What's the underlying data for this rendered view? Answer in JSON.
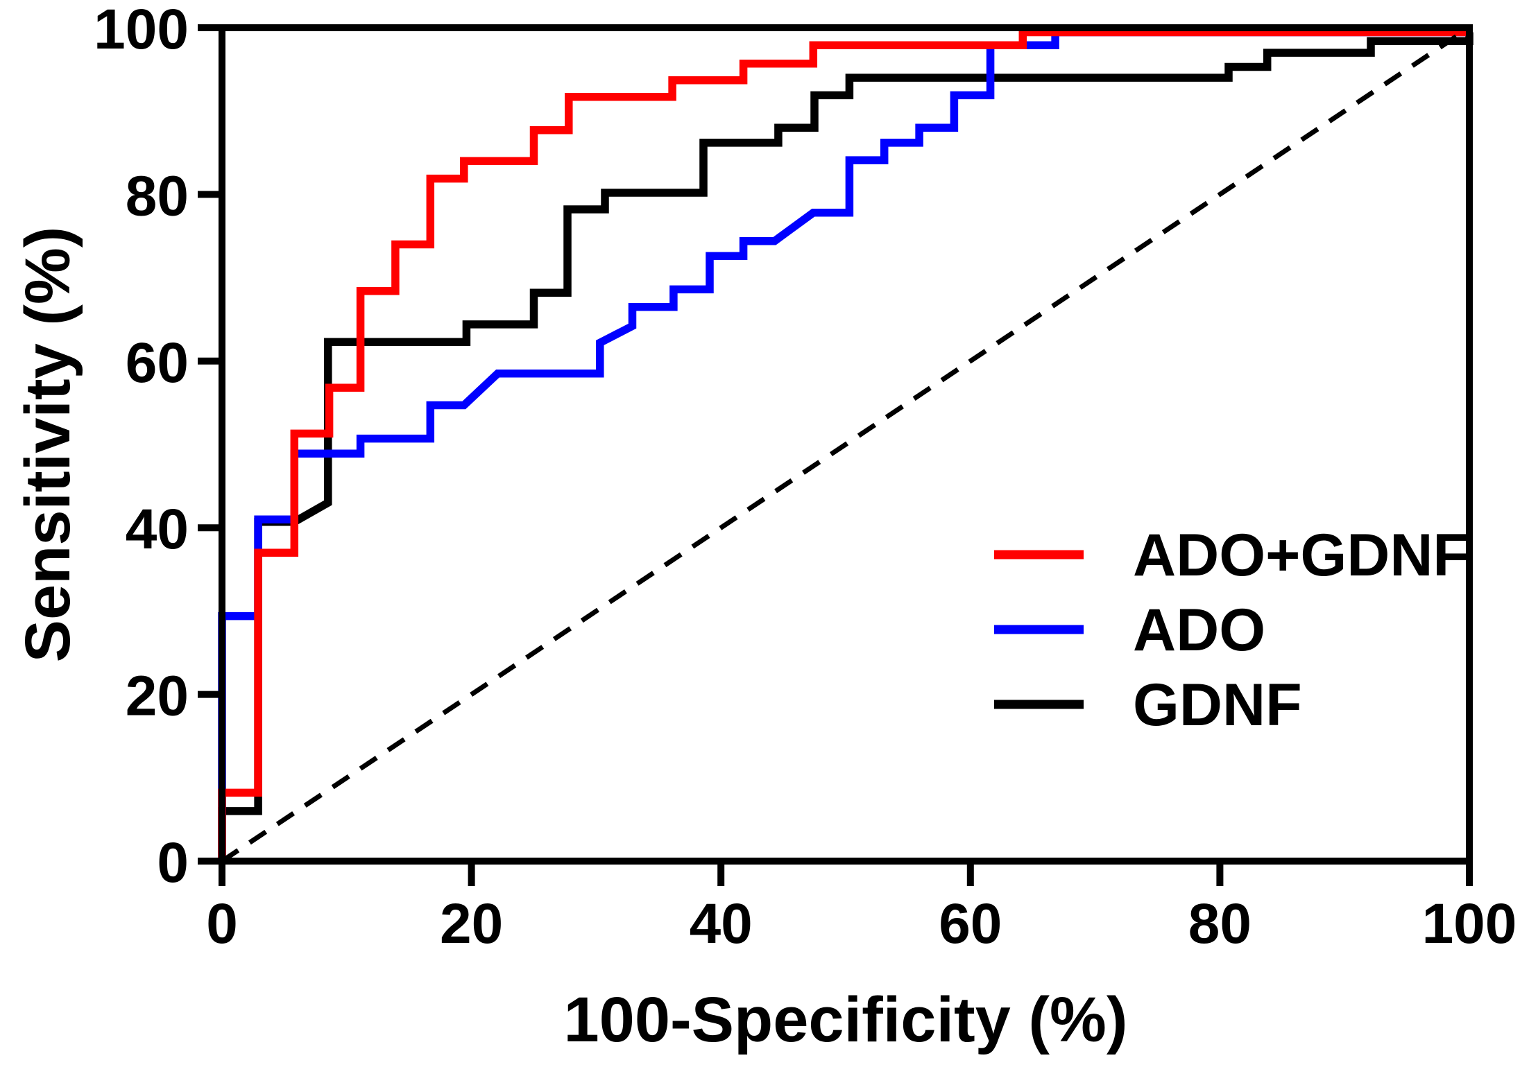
{
  "chart_data": {
    "type": "line",
    "subtype": "roc-step-curves",
    "title": "",
    "xlabel": "100-Specificity (%)",
    "ylabel": "Sensitivity (%)",
    "xlim": [
      0,
      100
    ],
    "ylim": [
      0,
      100
    ],
    "x_ticks": [
      "0",
      "20",
      "40",
      "60",
      "80",
      "100"
    ],
    "y_ticks": [
      "0",
      "20",
      "40",
      "60",
      "80",
      "100"
    ],
    "x_tick_values": [
      0,
      20,
      40,
      60,
      80,
      100
    ],
    "y_tick_values": [
      0,
      20,
      40,
      60,
      80,
      100
    ],
    "grid": false,
    "legend_position": "lower right",
    "frame_color": "#000000",
    "background_color": "#ffffff",
    "reference_line": {
      "name": "chance-diagonal",
      "style": "dashed",
      "color": "#000000",
      "from": [
        0,
        0
      ],
      "to": [
        100,
        100
      ]
    },
    "series": [
      {
        "name": "ADO+GDNF",
        "color": "#ff0000",
        "points": [
          [
            0,
            0
          ],
          [
            0,
            8.2
          ],
          [
            2.9,
            8.2
          ],
          [
            2.9,
            37
          ],
          [
            5.8,
            37
          ],
          [
            5.8,
            51.3
          ],
          [
            8.6,
            51.3
          ],
          [
            8.6,
            56.8
          ],
          [
            11.1,
            56.8
          ],
          [
            11.1,
            68.4
          ],
          [
            13.9,
            68.4
          ],
          [
            13.9,
            74
          ],
          [
            16.7,
            74
          ],
          [
            16.7,
            81.9
          ],
          [
            19.4,
            81.9
          ],
          [
            19.4,
            84
          ],
          [
            25,
            84
          ],
          [
            25,
            87.7
          ],
          [
            27.8,
            87.7
          ],
          [
            27.8,
            91.7
          ],
          [
            36.1,
            91.7
          ],
          [
            36.1,
            93.7
          ],
          [
            41.8,
            93.7
          ],
          [
            41.8,
            95.7
          ],
          [
            47.4,
            95.7
          ],
          [
            47.4,
            97.9
          ],
          [
            64.2,
            97.9
          ],
          [
            64.2,
            100
          ],
          [
            100,
            100
          ]
        ]
      },
      {
        "name": "ADO",
        "color": "#0000ff",
        "points": [
          [
            0,
            0
          ],
          [
            0,
            29.4
          ],
          [
            2.9,
            29.4
          ],
          [
            2.9,
            41
          ],
          [
            5.8,
            41
          ],
          [
            5.8,
            48.9
          ],
          [
            11.1,
            48.9
          ],
          [
            11.1,
            50.7
          ],
          [
            16.7,
            50.7
          ],
          [
            16.7,
            54.7
          ],
          [
            19.4,
            54.7
          ],
          [
            22.1,
            58.5
          ],
          [
            30.3,
            58.5
          ],
          [
            30.3,
            62.2
          ],
          [
            32.9,
            64.2
          ],
          [
            32.9,
            66.5
          ],
          [
            36.2,
            66.5
          ],
          [
            36.2,
            68.6
          ],
          [
            39.1,
            68.6
          ],
          [
            39.1,
            72.6
          ],
          [
            41.8,
            72.6
          ],
          [
            41.8,
            74.4
          ],
          [
            44.3,
            74.4
          ],
          [
            47.4,
            77.8
          ],
          [
            50.3,
            77.8
          ],
          [
            50.3,
            84.1
          ],
          [
            53.1,
            84.1
          ],
          [
            53.1,
            86.2
          ],
          [
            55.9,
            86.2
          ],
          [
            55.9,
            88
          ],
          [
            58.7,
            88
          ],
          [
            58.7,
            91.9
          ],
          [
            61.6,
            91.9
          ],
          [
            61.6,
            97.9
          ],
          [
            66.8,
            97.9
          ],
          [
            66.8,
            100
          ],
          [
            100,
            100
          ]
        ]
      },
      {
        "name": "GDNF",
        "color": "#000000",
        "points": [
          [
            0,
            0
          ],
          [
            0,
            6
          ],
          [
            2.9,
            6
          ],
          [
            2.9,
            40.7
          ],
          [
            5.8,
            40.7
          ],
          [
            8.5,
            43
          ],
          [
            8.5,
            62.3
          ],
          [
            19.6,
            62.3
          ],
          [
            19.6,
            64.4
          ],
          [
            25,
            64.4
          ],
          [
            25,
            68.2
          ],
          [
            27.7,
            68.2
          ],
          [
            27.7,
            78.2
          ],
          [
            30.7,
            78.2
          ],
          [
            30.7,
            80.2
          ],
          [
            38.6,
            80.2
          ],
          [
            38.6,
            86.2
          ],
          [
            44.6,
            86.2
          ],
          [
            44.6,
            88
          ],
          [
            47.5,
            88
          ],
          [
            47.5,
            91.9
          ],
          [
            50.3,
            91.9
          ],
          [
            50.3,
            94
          ],
          [
            80.7,
            94
          ],
          [
            80.7,
            95.3
          ],
          [
            83.8,
            95.3
          ],
          [
            83.8,
            97
          ],
          [
            92.1,
            97
          ],
          [
            92.1,
            98.4
          ],
          [
            100,
            98.4
          ],
          [
            100,
            100
          ]
        ]
      }
    ]
  }
}
